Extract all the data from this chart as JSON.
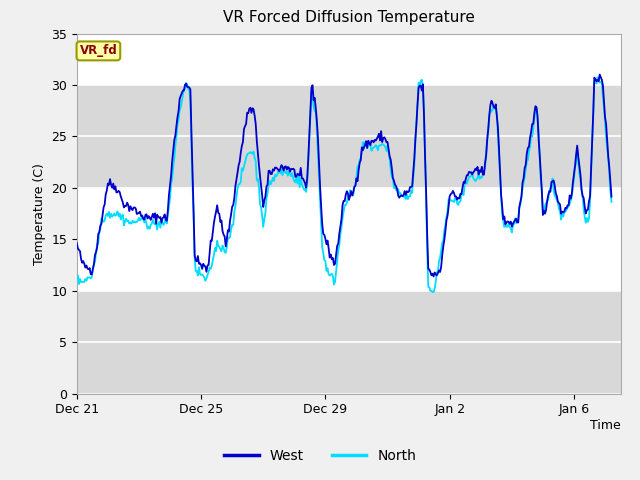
{
  "title": "VR Forced Diffusion Temperature",
  "xlabel": "Time",
  "ylabel": "Temperature (C)",
  "ylim": [
    0,
    35
  ],
  "yticks": [
    0,
    5,
    10,
    15,
    20,
    25,
    30,
    35
  ],
  "xtick_labels": [
    "Dec 21",
    "Dec 25",
    "Dec 29",
    "Jan 2",
    "Jan 6"
  ],
  "xtick_positions": [
    0,
    4,
    8,
    12,
    16
  ],
  "xlim": [
    0,
    17.5
  ],
  "west_color": "#0000cc",
  "north_color": "#00ddff",
  "label_color": "#8b0000",
  "legend_labels": [
    "West",
    "North"
  ],
  "annotation_text": "VR_fd",
  "annotation_box_fill": "#ffffaa",
  "annotation_box_edge": "#999900",
  "plot_bg_white": "#ffffff",
  "plot_bg_gray": "#d8d8d8",
  "fig_bg": "#f0f0f0",
  "num_points": 500,
  "west_keys_t": [
    0,
    0.2,
    0.5,
    0.8,
    1.0,
    1.3,
    1.5,
    1.8,
    2.0,
    2.3,
    2.6,
    2.9,
    3.1,
    3.3,
    3.5,
    3.65,
    3.8,
    4.0,
    4.2,
    4.5,
    4.8,
    5.0,
    5.2,
    5.5,
    5.7,
    6.0,
    6.2,
    6.5,
    6.8,
    7.0,
    7.2,
    7.4,
    7.55,
    7.7,
    7.9,
    8.1,
    8.3,
    8.6,
    8.9,
    9.2,
    9.5,
    9.8,
    10.0,
    10.2,
    10.4,
    10.6,
    10.8,
    11.0,
    11.15,
    11.3,
    11.5,
    11.7,
    12.0,
    12.3,
    12.6,
    12.9,
    13.1,
    13.3,
    13.5,
    13.7,
    14.0,
    14.2,
    14.4,
    14.6,
    14.8,
    15.0,
    15.3,
    15.6,
    15.9,
    16.1,
    16.35,
    16.5,
    16.65,
    16.9,
    17.2
  ],
  "west_keys_v": [
    14.5,
    12.5,
    12.0,
    17.0,
    20.5,
    20.0,
    18.5,
    18.0,
    17.5,
    17.0,
    17.2,
    17.0,
    23.5,
    28.5,
    30.3,
    29.5,
    13.0,
    12.5,
    12.0,
    18.5,
    14.5,
    18.0,
    22.0,
    27.5,
    27.5,
    18.0,
    21.5,
    22.0,
    22.0,
    21.5,
    21.0,
    20.0,
    29.8,
    28.0,
    16.0,
    14.0,
    12.5,
    19.0,
    19.5,
    24.0,
    24.5,
    25.0,
    24.5,
    20.5,
    19.0,
    19.5,
    20.0,
    30.0,
    29.5,
    12.0,
    11.5,
    12.0,
    19.5,
    19.0,
    21.5,
    21.5,
    21.5,
    28.0,
    28.0,
    17.0,
    16.5,
    17.0,
    21.5,
    25.0,
    28.5,
    17.0,
    21.0,
    17.5,
    19.0,
    24.0,
    17.5,
    18.0,
    30.8,
    30.5,
    19.5
  ],
  "north_keys_v": [
    11.0,
    11.0,
    11.5,
    17.0,
    17.5,
    17.5,
    17.0,
    16.5,
    17.0,
    16.5,
    16.5,
    16.5,
    22.0,
    27.5,
    30.1,
    29.0,
    12.0,
    11.5,
    11.0,
    14.5,
    14.0,
    16.5,
    20.0,
    23.5,
    23.5,
    16.5,
    20.5,
    21.5,
    21.5,
    21.0,
    20.5,
    19.5,
    29.5,
    27.0,
    14.0,
    11.5,
    11.0,
    18.5,
    19.5,
    24.0,
    24.0,
    24.0,
    24.0,
    20.0,
    19.5,
    19.0,
    19.5,
    30.2,
    29.8,
    10.5,
    10.0,
    13.5,
    19.0,
    18.5,
    21.0,
    21.0,
    21.0,
    27.5,
    27.5,
    16.5,
    16.0,
    17.0,
    21.0,
    24.5,
    28.0,
    17.5,
    20.5,
    17.0,
    18.5,
    23.5,
    17.0,
    17.5,
    30.5,
    30.2,
    18.5
  ]
}
